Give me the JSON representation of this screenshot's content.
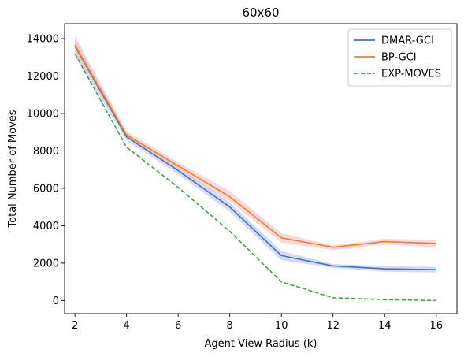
{
  "chart_data": {
    "type": "line",
    "title": "60x60",
    "xlabel": "Agent View Radius (k)",
    "ylabel": "Total Number of Moves",
    "x": [
      2,
      4,
      6,
      8,
      10,
      12,
      14,
      16
    ],
    "xticks": [
      2,
      4,
      6,
      8,
      10,
      12,
      14,
      16
    ],
    "yticks": [
      0,
      2000,
      4000,
      6000,
      8000,
      10000,
      12000,
      14000
    ],
    "xlim": [
      1.6,
      16.8
    ],
    "ylim": [
      -700,
      14800
    ],
    "grid": false,
    "legend_position": "top-right",
    "series": [
      {
        "name": "DMAR-GCI",
        "color": "#3a78b8",
        "style": "solid",
        "values": [
          13600,
          8750,
          6950,
          5000,
          2400,
          1850,
          1700,
          1650
        ],
        "band_low": [
          13100,
          8550,
          6750,
          4750,
          2150,
          1750,
          1550,
          1500
        ],
        "band_high": [
          14000,
          8950,
          7150,
          5250,
          2650,
          1950,
          1850,
          1800
        ],
        "band_color": "#b8b8f0"
      },
      {
        "name": "BP-GCI",
        "color": "#ff7f0e",
        "style": "solid",
        "values": [
          13650,
          8850,
          7200,
          5550,
          3350,
          2850,
          3150,
          3050
        ],
        "band_low": [
          13300,
          8700,
          7000,
          5300,
          3100,
          2700,
          3000,
          2850
        ],
        "band_high": [
          14150,
          9050,
          7400,
          5850,
          3600,
          2950,
          3300,
          3250
        ],
        "band_color": "#f3b9c4"
      },
      {
        "name": "EXP-MOVES",
        "color": "#3fa73f",
        "style": "dashed",
        "values": [
          13200,
          8200,
          6050,
          3700,
          1000,
          150,
          50,
          0
        ]
      }
    ]
  }
}
